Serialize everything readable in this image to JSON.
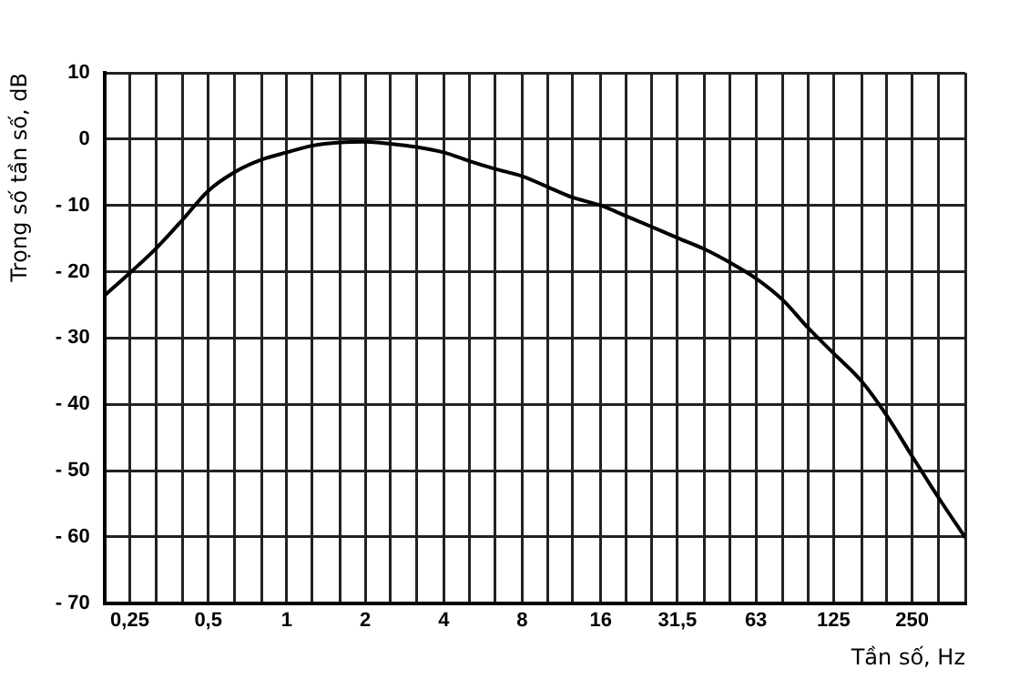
{
  "chart_data": {
    "type": "line",
    "xlabel": "Tần số, Hz",
    "ylabel": "Trọng số tần số, dB",
    "log": "x",
    "grid": true,
    "marker": "none",
    "line_style": "solid",
    "x": [
      0.2,
      0.25,
      0.315,
      0.4,
      0.5,
      0.63,
      0.8,
      1,
      1.25,
      1.6,
      2,
      2.5,
      3.15,
      4,
      5,
      6.3,
      8,
      10,
      12.5,
      16,
      20,
      25,
      31.5,
      40,
      50,
      63,
      80,
      100,
      125,
      160,
      200,
      250,
      315,
      400
    ],
    "series": [
      {
        "color": "#000000",
        "values": [
          -23.6,
          -20.2,
          -16.5,
          -12.1,
          -7.8,
          -5.0,
          -3.1,
          -2.0,
          -1.0,
          -0.5,
          -0.4,
          -0.7,
          -1.2,
          -2.0,
          -3.3,
          -4.5,
          -5.6,
          -7.2,
          -8.8,
          -10.0,
          -11.6,
          -13.2,
          -14.9,
          -16.6,
          -18.6,
          -21.0,
          -24.3,
          -28.5,
          -32.3,
          -36.5,
          -41.7,
          -47.8,
          -54.0,
          -60.1
        ]
      }
    ],
    "xlim": [
      0.2,
      400
    ],
    "xticks": [
      {
        "value": 0.2,
        "label": null
      },
      {
        "value": 0.25,
        "label": "0,25"
      },
      {
        "value": 0.315,
        "label": null
      },
      {
        "value": 0.4,
        "label": null
      },
      {
        "value": 0.5,
        "label": "0,5"
      },
      {
        "value": 0.63,
        "label": null
      },
      {
        "value": 0.8,
        "label": null
      },
      1,
      {
        "value": 1.25,
        "label": null
      },
      {
        "value": 1.6,
        "label": null
      },
      2,
      {
        "value": 2.5,
        "label": null
      },
      {
        "value": 3.15,
        "label": null
      },
      4,
      {
        "value": 5,
        "label": null
      },
      {
        "value": 6.3,
        "label": null
      },
      8,
      {
        "value": 10,
        "label": null
      },
      {
        "value": 12.5,
        "label": null
      },
      16,
      {
        "value": 20,
        "label": null
      },
      {
        "value": 25,
        "label": null
      },
      {
        "value": 31.5,
        "label": "31,5"
      },
      {
        "value": 40,
        "label": null
      },
      {
        "value": 50,
        "label": null
      },
      63,
      {
        "value": 80,
        "label": null
      },
      {
        "value": 100,
        "label": null
      },
      125,
      {
        "value": 160,
        "label": null
      },
      {
        "value": 200,
        "label": null
      },
      250,
      {
        "value": 315,
        "label": null
      },
      {
        "value": 400,
        "label": null
      }
    ],
    "ylim": [
      -70,
      10
    ],
    "yticks": [
      {
        "value": -70,
        "label": "- 70"
      },
      {
        "value": -60,
        "label": "- 60"
      },
      {
        "value": -50,
        "label": "- 50"
      },
      {
        "value": -40,
        "label": "- 40"
      },
      {
        "value": -30,
        "label": "- 30"
      },
      {
        "value": -20,
        "label": "- 20"
      },
      {
        "value": -10,
        "label": "- 10"
      },
      0,
      10
    ]
  }
}
